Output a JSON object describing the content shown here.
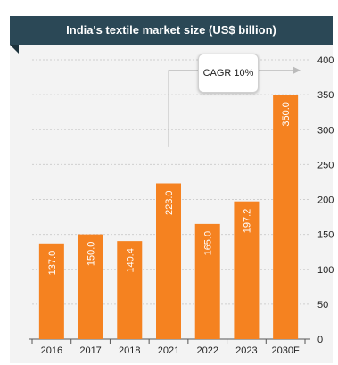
{
  "chart_data": {
    "type": "bar",
    "title": "India's textile market size (US$ billion)",
    "categories": [
      "2016",
      "2017",
      "2018",
      "2021",
      "2022",
      "2023",
      "2030F"
    ],
    "values": [
      137.0,
      150.0,
      140.4,
      223.0,
      165.0,
      197.2,
      350.0
    ],
    "value_labels": [
      "137.0",
      "150.0",
      "140.4",
      "223.0",
      "165.0",
      "197.2",
      "350.0"
    ],
    "ylim": [
      0,
      400
    ],
    "yticks": [
      0,
      50,
      100,
      150,
      200,
      250,
      300,
      350,
      400
    ],
    "y_axis_side": "right",
    "grid": "horizontal dashed",
    "annotation": "CAGR 10%",
    "colors": {
      "bar": "#f58220",
      "header": "#2b4856",
      "grid": "#cfcfcf",
      "axis": "#555555",
      "arrow": "#bbbbbb"
    }
  }
}
